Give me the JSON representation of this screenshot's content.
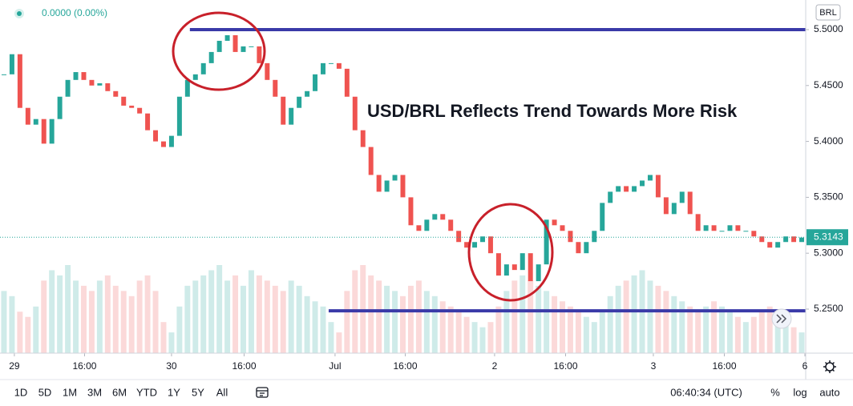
{
  "chart_data": {
    "type": "candlestick",
    "header": {
      "change": "0.0000 (0.00%)",
      "currency": "BRL"
    },
    "title": "USD/BRL Reflects Trend Towards More Risk",
    "x": [
      0,
      1,
      2,
      3,
      4,
      5,
      6,
      7,
      8,
      9,
      10,
      11,
      12,
      13,
      14,
      15,
      16,
      17,
      18,
      19,
      20,
      21,
      22,
      23,
      24,
      25,
      26,
      27,
      28,
      29,
      30,
      31,
      32,
      33,
      34,
      35,
      36,
      37,
      38,
      39,
      40,
      41,
      42,
      43,
      44,
      45,
      46,
      47,
      48,
      49,
      50,
      51,
      52,
      53,
      54,
      55,
      56,
      57,
      58,
      59,
      60,
      61,
      62,
      63,
      64,
      65,
      66,
      67,
      68,
      69,
      70,
      71,
      72,
      73,
      74,
      75,
      76,
      77,
      78,
      79,
      80,
      81,
      82,
      83,
      84,
      85,
      86,
      87,
      88,
      89,
      90,
      91,
      92,
      93,
      94,
      95,
      96,
      97,
      98,
      99,
      100
    ],
    "values": [
      5.46,
      5.478,
      5.43,
      5.415,
      5.42,
      5.398,
      5.42,
      5.44,
      5.455,
      5.462,
      5.455,
      5.45,
      5.452,
      5.445,
      5.44,
      5.432,
      5.43,
      5.425,
      5.41,
      5.4,
      5.395,
      5.405,
      5.44,
      5.455,
      5.46,
      5.47,
      5.48,
      5.49,
      5.495,
      5.48,
      5.485,
      5.485,
      5.47,
      5.455,
      5.44,
      5.415,
      5.43,
      5.44,
      5.445,
      5.46,
      5.47,
      5.47,
      5.465,
      5.44,
      5.41,
      5.395,
      5.37,
      5.355,
      5.365,
      5.37,
      5.35,
      5.325,
      5.32,
      5.33,
      5.335,
      5.33,
      5.32,
      5.31,
      5.305,
      5.31,
      5.315,
      5.3,
      5.28,
      5.29,
      5.285,
      5.3,
      5.275,
      5.29,
      5.33,
      5.325,
      5.32,
      5.31,
      5.3,
      5.31,
      5.32,
      5.345,
      5.355,
      5.36,
      5.355,
      5.36,
      5.365,
      5.37,
      5.35,
      5.335,
      5.345,
      5.355,
      5.335,
      5.32,
      5.325,
      5.32,
      5.32,
      5.325,
      5.32,
      5.32,
      5.315,
      5.31,
      5.305,
      5.31,
      5.315,
      5.31,
      5.314
    ],
    "volume": [
      60,
      55,
      40,
      35,
      45,
      70,
      80,
      75,
      85,
      70,
      65,
      60,
      70,
      75,
      65,
      60,
      55,
      70,
      75,
      60,
      30,
      20,
      45,
      65,
      70,
      75,
      80,
      85,
      70,
      75,
      65,
      80,
      75,
      70,
      65,
      60,
      70,
      65,
      55,
      50,
      45,
      30,
      20,
      60,
      80,
      85,
      75,
      70,
      65,
      60,
      55,
      65,
      70,
      60,
      55,
      50,
      45,
      40,
      35,
      30,
      25,
      30,
      45,
      60,
      70,
      75,
      70,
      65,
      60,
      55,
      50,
      45,
      40,
      35,
      30,
      40,
      55,
      65,
      70,
      75,
      80,
      70,
      65,
      60,
      55,
      50,
      45,
      40,
      45,
      50,
      45,
      40,
      35,
      30,
      35,
      40,
      45,
      35,
      30,
      25,
      20
    ],
    "up_color": "#26a69a",
    "down_color": "#ef5350",
    "xlim": [
      -0.5,
      100.5
    ],
    "xticks": [
      {
        "value": 1.3,
        "label": "29"
      },
      {
        "value": 10.1,
        "label": "16:00"
      },
      {
        "value": 21.0,
        "label": "30"
      },
      {
        "value": 30.1,
        "label": "16:00"
      },
      {
        "value": 41.5,
        "label": "Jul"
      },
      {
        "value": 50.3,
        "label": "16:00"
      },
      {
        "value": 61.5,
        "label": "2"
      },
      {
        "value": 70.4,
        "label": "16:00"
      },
      {
        "value": 81.4,
        "label": "3"
      },
      {
        "value": 90.3,
        "label": "16:00"
      },
      {
        "value": 100.4,
        "label": "6"
      }
    ],
    "ylim": [
      5.2106,
      5.5265
    ],
    "yticks": [
      {
        "value": 5.25,
        "label": "5.2500"
      },
      {
        "value": 5.3,
        "label": "5.3000"
      },
      {
        "value": 5.35,
        "label": "5.3500"
      },
      {
        "value": 5.4,
        "label": "5.4000"
      },
      {
        "value": 5.45,
        "label": "5.4500"
      },
      {
        "value": 5.5,
        "label": "5.5000"
      }
    ],
    "last_price": 5.3143,
    "lines": [
      {
        "y": 5.5,
        "x_start": 23.3,
        "color": "#3a3aa8"
      },
      {
        "y": 5.2485,
        "x_start": 40.7,
        "color": "#3a3aa8"
      }
    ],
    "toolbar": {
      "ranges": [
        "1D",
        "5D",
        "1M",
        "3M",
        "6M",
        "YTD",
        "1Y",
        "5Y",
        "All"
      ],
      "time": "06:40:34 (UTC)",
      "options": [
        "%",
        "log",
        "auto"
      ]
    }
  }
}
